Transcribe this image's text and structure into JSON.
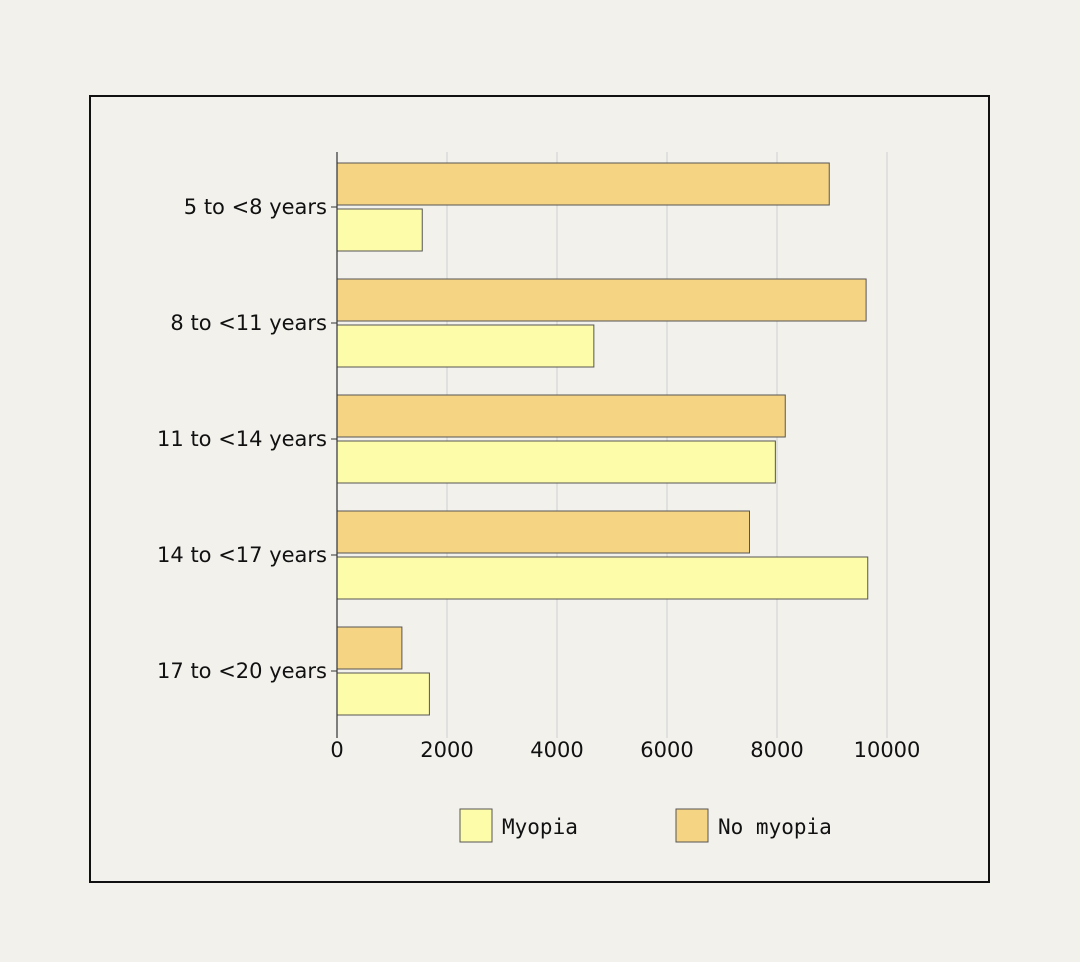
{
  "chart_data": {
    "type": "bar",
    "orientation": "horizontal",
    "categories": [
      "5 to <8 years",
      "8 to <11 years",
      "11 to <14 years",
      "14 to <17 years",
      "17 to <20 years"
    ],
    "series": [
      {
        "name": "No myopia",
        "values": [
          8950,
          9620,
          8150,
          7500,
          1180
        ],
        "color": "#f5d484"
      },
      {
        "name": "Myopia",
        "values": [
          1550,
          4670,
          7970,
          9650,
          1680
        ],
        "color": "#fdfca9"
      }
    ],
    "x_ticks": [
      0,
      2000,
      4000,
      6000,
      8000,
      10000
    ],
    "xlim": [
      0,
      11000
    ],
    "grid": "vertical",
    "legend": {
      "position": "bottom",
      "entries": [
        "Myopia",
        "No myopia"
      ]
    },
    "title": "",
    "xlabel": "",
    "ylabel": ""
  },
  "colors": {
    "myopia": "#fdfca9",
    "no_myopia": "#f5d484",
    "bar_stroke": "#555555",
    "grid": "#cfcfcf",
    "frame": "#111111",
    "background": "#f2f1ec"
  }
}
